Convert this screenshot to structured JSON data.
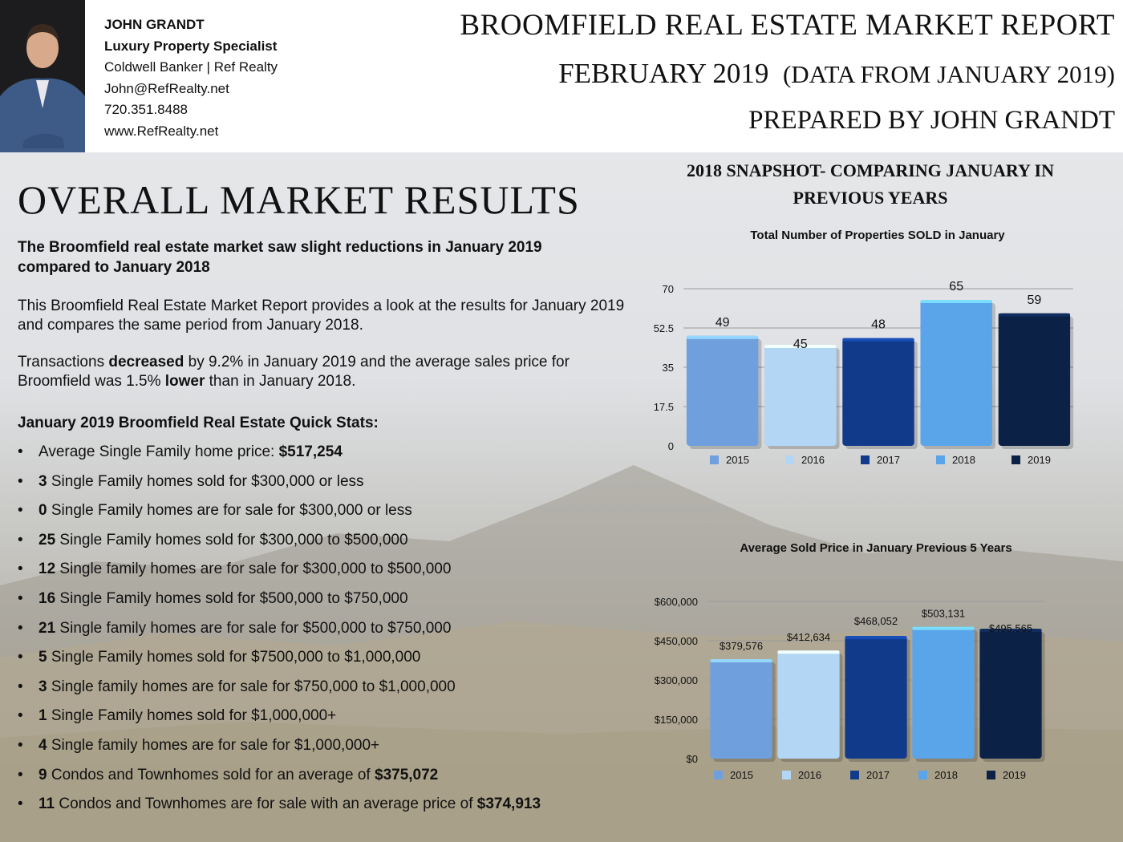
{
  "agent": {
    "name": "JOHN GRANDT",
    "role": "Luxury Property Specialist",
    "company": "Coldwell Banker | Ref Realty",
    "email": "John@RefRealty.net",
    "phone": "720.351.8488",
    "website": "www.RefRealty.net"
  },
  "report": {
    "title": "BROOMFIELD REAL ESTATE MARKET REPORT",
    "month": "FEBRUARY 2019",
    "data_note": "(DATA FROM JANUARY 2019)",
    "prepared_by": "PREPARED BY JOHN GRANDT"
  },
  "overall": {
    "heading": "OVERALL MARKET RESULTS",
    "intro": "The Broomfield real estate market saw slight reductions in January 2019 compared to January 2018",
    "paragraph1": "This Broomfield Real Estate Market Report provides a look at the results for January 2019 and compares the same period from January 2018.",
    "paragraph2": {
      "a": "Transactions ",
      "b": "decreased",
      "c": " by 9.2% in January 2019 and the average sales price for Broomfield was 1.5% ",
      "d": "lower",
      "e": " than in January 2018."
    },
    "quick_stats_title": "January 2019 Broomfield Real Estate Quick Stats:",
    "stats": [
      {
        "pre": "",
        "num": "",
        "text": "Average Single Family home price: ",
        "post": "$517,254"
      },
      {
        "num": "3",
        "text": " Single Family homes sold for $300,000 or less"
      },
      {
        "num": "0",
        "text": " Single Family homes are for sale for $300,000 or less"
      },
      {
        "num": "25",
        "text": " Single Family homes sold for $300,000 to $500,000"
      },
      {
        "num": "12",
        "text": " Single family homes are for sale for $300,000 to $500,000"
      },
      {
        "num": "16",
        "text": " Single Family homes sold for $500,000 to $750,000"
      },
      {
        "num": "21",
        "text": " Single family homes are for sale for $500,000 to $750,000"
      },
      {
        "num": "5",
        "text": " Single Family homes sold for $7500,000 to $1,000,000"
      },
      {
        "num": "3",
        "text": " Single family homes are for sale for $750,000 to $1,000,000"
      },
      {
        "num": "1",
        "text": " Single Family homes sold for $1,000,000+"
      },
      {
        "num": "4",
        "text": " Single family homes are for sale for $1,000,000+"
      },
      {
        "num": "9",
        "text": " Condos and Townhomes sold for an average of ",
        "post": "$375,072"
      },
      {
        "num": "11",
        "text": " Condos and Townhomes are for sale with an average price of ",
        "post": "$374,913"
      }
    ]
  },
  "snapshot": {
    "heading_line1": "2018 SNAPSHOT- COMPARING  JANUARY IN",
    "heading_line2": "PREVIOUS YEARS"
  },
  "colors": {
    "2015": "#6f9fdc",
    "2016": "#b3d6f5",
    "2017": "#113a8a",
    "2018": "#5aa4ea",
    "2019": "#0b2146"
  },
  "chart_data": [
    {
      "type": "bar",
      "title": "Total Number of Properties SOLD in January",
      "categories": [
        "2015",
        "2016",
        "2017",
        "2018",
        "2019"
      ],
      "values": [
        49,
        45,
        48,
        65,
        59
      ],
      "value_labels": [
        "49",
        "45",
        "48",
        "65",
        "59"
      ],
      "yticks": [
        "0",
        "17.5",
        "35",
        "52.5",
        "70"
      ],
      "ylim": [
        0,
        70
      ],
      "legend": [
        "2015",
        "2016",
        "2017",
        "2018",
        "2019"
      ],
      "legend_position": "bottom",
      "grid": true
    },
    {
      "type": "bar",
      "title": "Average Sold Price in January Previous 5 Years",
      "categories": [
        "2015",
        "2016",
        "2017",
        "2018",
        "2019"
      ],
      "values": [
        379576,
        412634,
        468052,
        503131,
        495565
      ],
      "value_labels": [
        "$379,576",
        "$412,634",
        "$468,052",
        "$503,131",
        "$495,565"
      ],
      "yticks": [
        "$0",
        "$150,000",
        "$300,000",
        "$450,000",
        "$600,000"
      ],
      "ylim": [
        0,
        600000
      ],
      "legend": [
        "2015",
        "2016",
        "2017",
        "2018",
        "2019"
      ],
      "legend_position": "bottom",
      "grid": true
    }
  ]
}
